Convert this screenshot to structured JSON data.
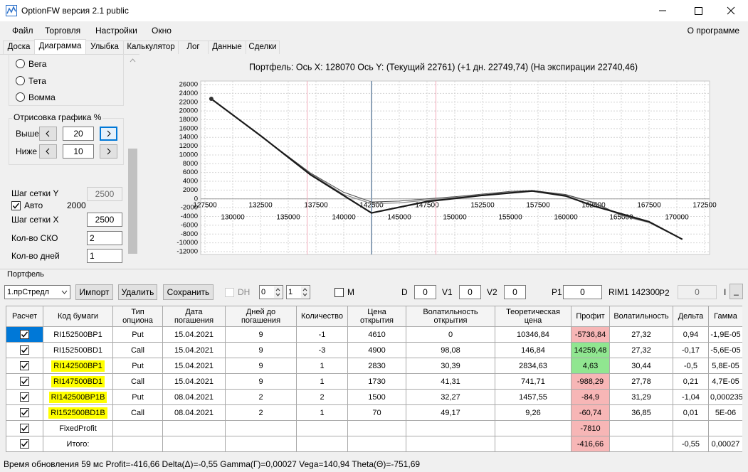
{
  "window": {
    "title": "OptionFW версия 2.1 public"
  },
  "menu": {
    "items": [
      "Файл",
      "Торговля",
      "Настройки",
      "Окно"
    ],
    "right": "О программе"
  },
  "tabs": [
    "Доска",
    "Диаграмма",
    "Улыбка",
    "Калькулятор",
    "Лог",
    "Данные",
    "Сделки"
  ],
  "left_panel": {
    "radios": [
      "Вега",
      "Тета",
      "Вомма"
    ],
    "group_title": "Отрисовка графика %",
    "above_label": "Выше",
    "above_value": "20",
    "below_label": "Ниже",
    "below_value": "10",
    "grid_y_label": "Шаг сетки Y",
    "grid_y_value": "2500",
    "auto_label": "Авто",
    "auto_value": "2000",
    "grid_x_label": "Шаг сетки X",
    "grid_x_value": "2500",
    "sko_label": "Кол-во СКО",
    "sko_value": "2",
    "days_label": "Кол-во дней",
    "days_value": "1"
  },
  "chart_data": {
    "type": "line",
    "title": "Портфель: Ось X: 128070 Ось Y:  (Текущий 22761)  (+1 дн. 22749,74)  (На экспирации 22740,46)",
    "xlim": [
      127500,
      172500
    ],
    "ylim": [
      -12000,
      26000
    ],
    "xticks": [
      127500,
      130000,
      132500,
      135000,
      137500,
      140000,
      142500,
      145000,
      147500,
      150000,
      152500,
      155000,
      157500,
      160000,
      162500,
      165000,
      167500,
      170000,
      172500
    ],
    "yticks": [
      -12000,
      -10000,
      -8000,
      -6000,
      -4000,
      -2000,
      0,
      2000,
      4000,
      6000,
      8000,
      10000,
      12000,
      14000,
      16000,
      18000,
      20000,
      22000,
      24000,
      26000
    ],
    "grid": true,
    "vlines": [
      {
        "x": 142500,
        "color": "#8ea3b8"
      },
      {
        "x": 136700,
        "color": "#f2a9b9"
      },
      {
        "x": 148300,
        "color": "#f2a9b9"
      }
    ],
    "series": [
      {
        "color": "#8c8c8c",
        "line_width": 1.2,
        "x": [
          128070,
          132500,
          137000,
          140000,
          142500,
          145000,
          147500,
          150000,
          152500,
          155000,
          157000,
          160000,
          162500,
          165000,
          167500,
          170500
        ],
        "values": [
          22761,
          14300,
          5800,
          1000,
          -1100,
          -900,
          -300,
          300,
          900,
          1500,
          1700,
          900,
          -900,
          -3800,
          -5400,
          -9200
        ]
      },
      {
        "color": "#4d4d4d",
        "line_width": 1,
        "x": [
          128070,
          132500,
          137000,
          140000,
          142500,
          145000,
          147500,
          150000,
          152500,
          155000,
          157000,
          160000,
          162500,
          165000,
          167500,
          170500
        ],
        "values": [
          22749.74,
          14350,
          5900,
          1500,
          -700,
          -500,
          0,
          500,
          1100,
          1700,
          1900,
          1000,
          -800,
          -3700,
          -5300,
          -9200
        ]
      },
      {
        "color": "#1a1a1a",
        "line_width": 2.2,
        "x": [
          128070,
          132500,
          137000,
          142500,
          147500,
          152500,
          157000,
          160000,
          162500,
          167500,
          170500
        ],
        "values": [
          22740.46,
          14400,
          5500,
          -3200,
          -600,
          800,
          1800,
          650,
          -1600,
          -5200,
          -9200
        ]
      }
    ]
  },
  "portfolio": {
    "title": "Портфель",
    "toolbar": {
      "select": "1.прСтредл",
      "buttons": [
        "Импорт",
        "Удалить",
        "Сохранить"
      ],
      "dh": "DH",
      "spin1": "0",
      "spin2": "1",
      "m": "M",
      "d_label": "D",
      "d_value": "0",
      "v1_label": "V1",
      "v1_value": "0",
      "v2_label": "V2",
      "v2_value": "0",
      "p1_label": "P1",
      "p1_value": "0",
      "instrument": "RIM1 142300",
      "p2_label": "P2",
      "p2_value": "0",
      "cut_label": "I",
      "min_button": "_"
    },
    "table": {
      "columns": [
        "Расчет",
        "Код бумаги",
        "Тип\nопциона",
        "Дата\nпогашения",
        "Дней до\nпогашения",
        "Количество",
        "Цена\nоткрытия",
        "Волатильность\nоткрытия",
        "Теоретическая\nцена",
        "Профит",
        "Волатильность",
        "Дельта",
        "Гамма"
      ],
      "rows": [
        [
          "RI152500BP1",
          "Put",
          "15.04.2021",
          "9",
          "-1",
          "4610",
          "0",
          "10346,84",
          "-5736,84",
          "27,32",
          "0,94",
          "-1,9E-05"
        ],
        [
          "RI152500BD1",
          "Call",
          "15.04.2021",
          "9",
          "-3",
          "4900",
          "98,08",
          "146,84",
          "14259,48",
          "27,32",
          "-0,17",
          "-5,6E-05"
        ],
        [
          "RI142500BP1",
          "Put",
          "15.04.2021",
          "9",
          "1",
          "2830",
          "30,39",
          "2834,63",
          "4,63",
          "30,44",
          "-0,5",
          "5,8E-05"
        ],
        [
          "RI147500BD1",
          "Call",
          "15.04.2021",
          "9",
          "1",
          "1730",
          "41,31",
          "741,71",
          "-988,29",
          "27,78",
          "0,21",
          "4,7E-05"
        ],
        [
          "RI142500BP1B",
          "Put",
          "08.04.2021",
          "2",
          "2",
          "1500",
          "32,27",
          "1457,55",
          "-84,9",
          "31,29",
          "-1,04",
          "0,000235"
        ],
        [
          "RI152500BD1B",
          "Call",
          "08.04.2021",
          "2",
          "1",
          "70",
          "49,17",
          "9,26",
          "-60,74",
          "36,85",
          "0,01",
          "5E-06"
        ],
        [
          "FixedProfit",
          null,
          null,
          null,
          null,
          null,
          null,
          null,
          "-7810",
          null,
          null,
          null
        ],
        [
          "Итого:",
          null,
          null,
          null,
          null,
          null,
          null,
          null,
          "-416,66",
          null,
          "-0,55",
          "0,00027"
        ]
      ]
    }
  },
  "status": "Время обновления 59 мс  Profit=-416,66 Delta(Δ)=-0,55 Gamma(Г)=0,00027 Vega=140,94 Theta(Θ)=-751,69"
}
